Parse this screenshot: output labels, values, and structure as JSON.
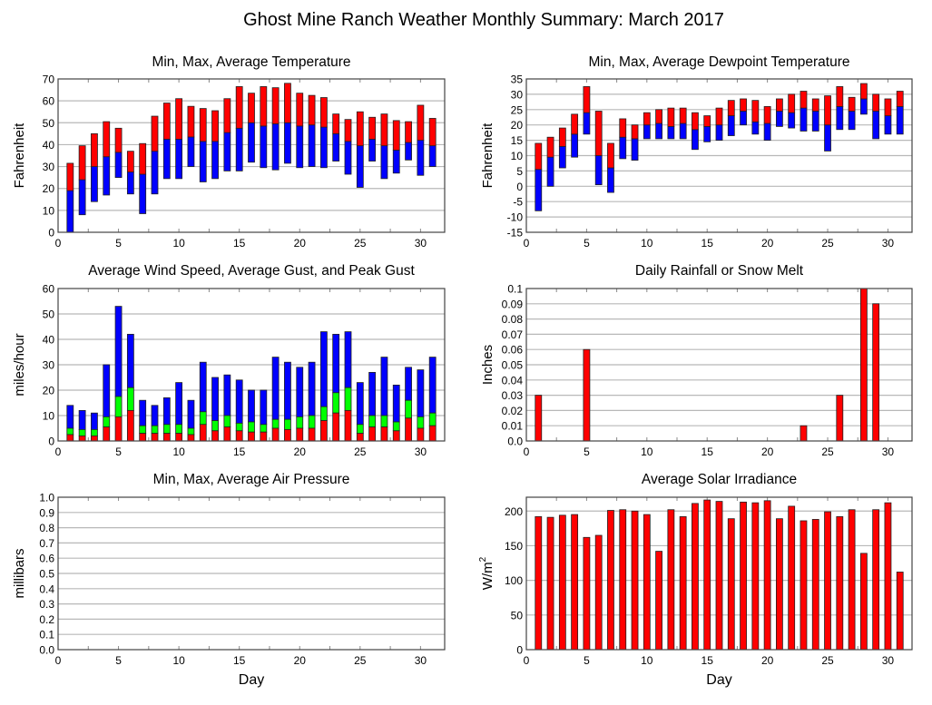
{
  "page_title": "Ghost Mine Ranch Weather Monthly Summary: March 2017",
  "chart_data": [
    {
      "id": "temperature",
      "type": "bar",
      "title": "Min, Max, Average Temperature",
      "xlabel": "",
      "ylabel": "Fahrenheit",
      "xlim": [
        0,
        32
      ],
      "ylim": [
        0,
        70
      ],
      "xticks": [
        0,
        5,
        10,
        15,
        20,
        25,
        30
      ],
      "yticks": [
        0,
        10,
        20,
        30,
        40,
        50,
        60,
        70
      ],
      "grid": true,
      "x": [
        1,
        2,
        3,
        4,
        5,
        6,
        7,
        8,
        9,
        10,
        11,
        12,
        13,
        14,
        15,
        16,
        17,
        18,
        19,
        20,
        21,
        22,
        23,
        24,
        25,
        26,
        27,
        28,
        29,
        30,
        31
      ],
      "series": [
        {
          "name": "Min",
          "color": "#0000ff",
          "values": [
            0,
            8,
            14,
            17,
            25,
            17.5,
            8.5,
            17.5,
            24.5,
            24.5,
            30,
            23,
            24.5,
            28,
            28,
            32,
            29.5,
            28.5,
            31.5,
            29.5,
            30,
            29.5,
            32.5,
            26.5,
            20.5,
            32.5,
            24.5,
            27,
            33,
            26,
            30
          ]
        },
        {
          "name": "Average",
          "color": "#0000ff",
          "values": [
            19,
            24,
            30,
            34.5,
            36.5,
            27.5,
            26.5,
            37,
            42.5,
            42.5,
            43.5,
            41.5,
            41.5,
            45.5,
            47.5,
            50,
            48.5,
            49.5,
            50,
            48.5,
            49,
            48,
            45,
            41.5,
            39.5,
            42.5,
            39.5,
            37.5,
            41,
            42,
            39.5
          ]
        },
        {
          "name": "Max",
          "color": "#ff0000",
          "values": [
            31.5,
            39.5,
            45,
            50.5,
            47.5,
            37,
            40.5,
            53,
            59,
            61,
            57.5,
            56.5,
            55.5,
            61,
            66.5,
            63.5,
            66.5,
            66,
            68,
            63.5,
            62.5,
            61.5,
            54,
            51.5,
            55,
            52.5,
            54,
            51,
            50.5,
            58,
            52
          ]
        }
      ]
    },
    {
      "id": "dewpoint",
      "type": "bar",
      "title": "Min, Max, Average Dewpoint Temperature",
      "xlabel": "",
      "ylabel": "Fahrenheit",
      "xlim": [
        0,
        32
      ],
      "ylim": [
        -15,
        35
      ],
      "xticks": [
        0,
        5,
        10,
        15,
        20,
        25,
        30
      ],
      "yticks": [
        -15,
        -10,
        -5,
        0,
        5,
        10,
        15,
        20,
        25,
        30,
        35
      ],
      "grid": true,
      "x": [
        1,
        2,
        3,
        4,
        5,
        6,
        7,
        8,
        9,
        10,
        11,
        12,
        13,
        14,
        15,
        16,
        17,
        18,
        19,
        20,
        21,
        22,
        23,
        24,
        25,
        26,
        27,
        28,
        29,
        30,
        31
      ],
      "series": [
        {
          "name": "Min",
          "color": "#0000ff",
          "values": [
            -8,
            0,
            6,
            9.5,
            17,
            0.5,
            -2,
            9,
            8.5,
            15.5,
            15.5,
            15.5,
            15.5,
            12,
            14.5,
            15,
            16.5,
            20,
            17,
            15,
            19.5,
            19,
            18,
            18,
            11.5,
            18.5,
            18.5,
            23.5,
            15.5,
            17,
            17
          ]
        },
        {
          "name": "Average",
          "color": "#0000ff",
          "values": [
            5.5,
            9.5,
            13,
            17,
            24,
            10,
            6,
            16,
            15.5,
            20,
            20.5,
            19.5,
            20.5,
            18.5,
            19.5,
            20,
            23,
            24.5,
            21,
            20.5,
            24.5,
            24,
            25.5,
            24.5,
            20,
            26,
            24.5,
            28.5,
            24.5,
            23,
            26
          ]
        },
        {
          "name": "Max",
          "color": "#ff0000",
          "values": [
            14,
            16,
            19,
            23.5,
            32.5,
            24.5,
            14,
            22,
            20,
            24,
            25,
            25.5,
            25.5,
            24,
            23,
            25.5,
            28,
            28.5,
            28,
            26,
            28.5,
            30,
            31,
            28.5,
            29.5,
            32.5,
            29,
            33.5,
            30,
            28.5,
            31
          ]
        }
      ]
    },
    {
      "id": "wind",
      "type": "bar",
      "title": "Average Wind Speed, Average Gust, and Peak Gust",
      "xlabel": "",
      "ylabel": "miles/hour",
      "xlim": [
        0,
        32
      ],
      "ylim": [
        0,
        60
      ],
      "xticks": [
        0,
        5,
        10,
        15,
        20,
        25,
        30
      ],
      "yticks": [
        0,
        10,
        20,
        30,
        40,
        50,
        60
      ],
      "grid": true,
      "x": [
        1,
        2,
        3,
        4,
        5,
        6,
        7,
        8,
        9,
        10,
        11,
        12,
        13,
        14,
        15,
        16,
        17,
        18,
        19,
        20,
        21,
        22,
        23,
        24,
        25,
        26,
        27,
        28,
        29,
        30,
        31
      ],
      "series": [
        {
          "name": "Average Wind Speed",
          "color": "#ff0000",
          "values": [
            2.5,
            2,
            2,
            5.5,
            9.5,
            12,
            3,
            3,
            3,
            3,
            2.5,
            6.5,
            4,
            5.5,
            4,
            3.5,
            3.5,
            5,
            4.5,
            5,
            5,
            8,
            11,
            12,
            3,
            5.5,
            5.5,
            4,
            9,
            5,
            6
          ]
        },
        {
          "name": "Average Gust",
          "color": "#00ff00",
          "values": [
            5,
            4.5,
            4.5,
            9.5,
            17.5,
            21,
            6,
            6,
            6.5,
            6.5,
            5,
            11.5,
            8,
            10,
            7,
            7.5,
            6.5,
            8.5,
            8.5,
            9.5,
            10,
            13.5,
            19,
            21,
            6.5,
            10,
            10,
            7.5,
            16,
            9.5,
            11
          ]
        },
        {
          "name": "Peak Gust",
          "color": "#0000ff",
          "values": [
            14,
            12,
            11,
            30,
            53,
            42,
            16,
            14,
            17,
            23,
            16,
            31,
            25,
            26,
            24,
            20,
            20,
            33,
            31,
            29,
            31,
            43,
            42,
            43,
            23,
            27,
            33,
            22,
            29,
            28,
            33
          ]
        }
      ]
    },
    {
      "id": "rainfall",
      "type": "bar",
      "title": "Daily Rainfall or Snow Melt",
      "xlabel": "",
      "ylabel": "Inches",
      "xlim": [
        0,
        32
      ],
      "ylim": [
        0,
        0.1
      ],
      "xticks": [
        0,
        5,
        10,
        15,
        20,
        25,
        30
      ],
      "yticks": [
        "0.0",
        "0.01",
        "0.02",
        "0.03",
        "0.04",
        "0.05",
        "0.06",
        "0.07",
        "0.08",
        "0.09",
        "0.1"
      ],
      "grid": true,
      "x": [
        1,
        2,
        3,
        4,
        5,
        6,
        7,
        8,
        9,
        10,
        11,
        12,
        13,
        14,
        15,
        16,
        17,
        18,
        19,
        20,
        21,
        22,
        23,
        24,
        25,
        26,
        27,
        28,
        29,
        30,
        31
      ],
      "series": [
        {
          "name": "Rainfall",
          "color": "#ff0000",
          "values": [
            0.03,
            0,
            0,
            0,
            0.06,
            0,
            0,
            0,
            0,
            0,
            0,
            0,
            0,
            0,
            0,
            0,
            0,
            0,
            0,
            0,
            0,
            0,
            0.01,
            0,
            0,
            0.03,
            0,
            0.1,
            0.09,
            0,
            0
          ]
        }
      ]
    },
    {
      "id": "pressure",
      "type": "bar",
      "title": "Min, Max, Average Air Pressure",
      "xlabel": "Day",
      "ylabel": "millibars",
      "xlim": [
        0,
        32
      ],
      "ylim": [
        0,
        1
      ],
      "xticks": [
        0,
        5,
        10,
        15,
        20,
        25,
        30
      ],
      "yticks": [
        "0.0",
        "0.1",
        "0.2",
        "0.3",
        "0.4",
        "0.5",
        "0.6",
        "0.7",
        "0.8",
        "0.9",
        "1.0"
      ],
      "grid": true,
      "x": [],
      "series": []
    },
    {
      "id": "solar",
      "type": "bar",
      "title": "Average Solar Irradiance",
      "xlabel": "Day",
      "ylabel": "W/m",
      "ylabel_superscript": "2",
      "xlim": [
        0,
        32
      ],
      "ylim": [
        0,
        220
      ],
      "xticks": [
        0,
        5,
        10,
        15,
        20,
        25,
        30
      ],
      "yticks": [
        0,
        50,
        100,
        150,
        200
      ],
      "grid": true,
      "x": [
        1,
        2,
        3,
        4,
        5,
        6,
        7,
        8,
        9,
        10,
        11,
        12,
        13,
        14,
        15,
        16,
        17,
        18,
        19,
        20,
        21,
        22,
        23,
        24,
        25,
        26,
        27,
        28,
        29,
        30,
        31
      ],
      "series": [
        {
          "name": "Solar Irradiance",
          "color": "#ff0000",
          "values": [
            192,
            191,
            194,
            195,
            162,
            165,
            201,
            202,
            200,
            195,
            142,
            202,
            192,
            211,
            216,
            214,
            189,
            213,
            212,
            215,
            189,
            207,
            186,
            188,
            199,
            192,
            202,
            139,
            202,
            212,
            112
          ]
        }
      ]
    }
  ]
}
